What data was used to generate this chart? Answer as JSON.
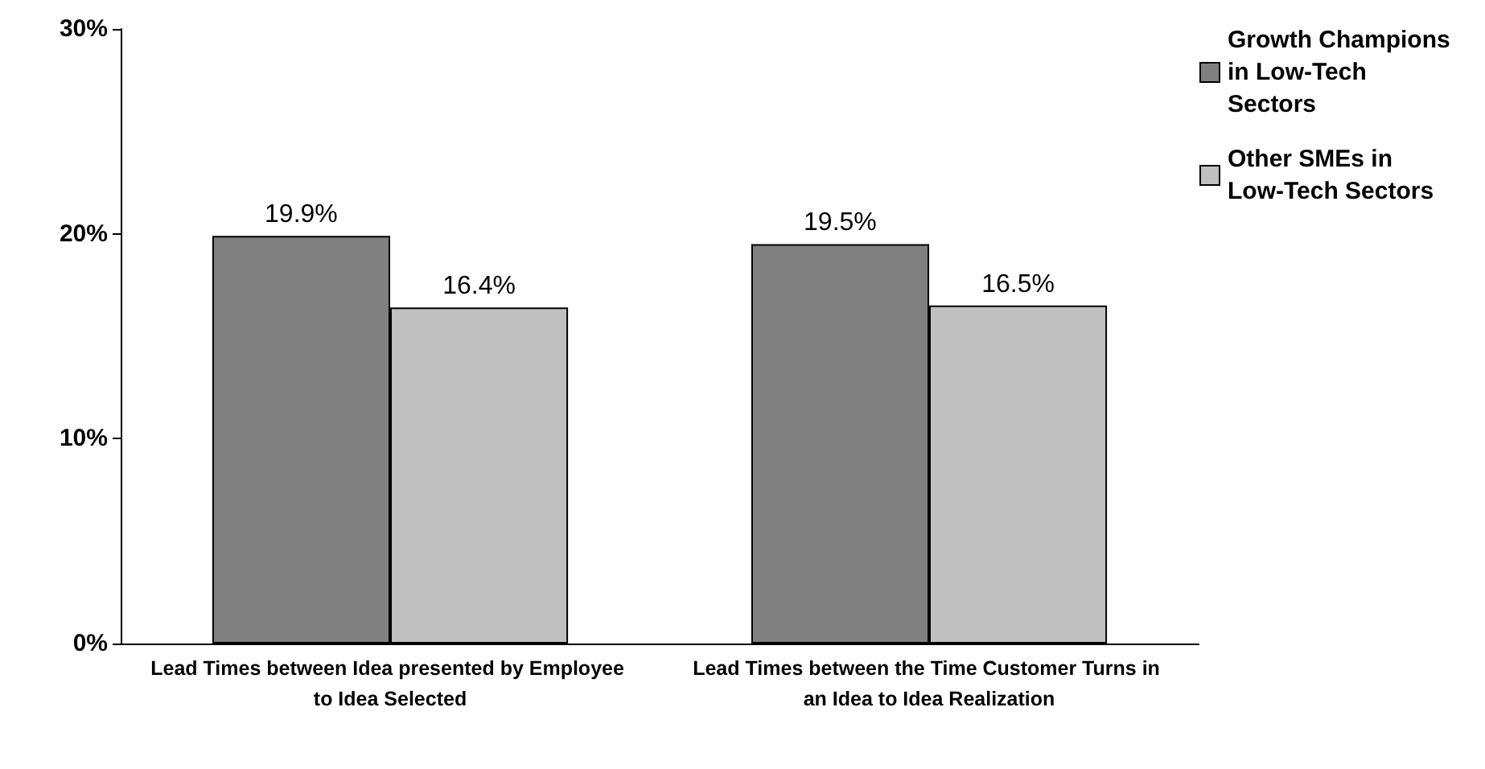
{
  "chart_data": {
    "type": "bar",
    "categories": [
      "Lead Times between Idea presented by Employee to Idea Selected",
      "Lead Times between the Time Customer Turns in an Idea to Idea Realization"
    ],
    "series": [
      {
        "name": "Growth Champions in Low-Tech Sectors",
        "color": "#808080",
        "values": [
          19.9,
          19.5
        ],
        "value_labels": [
          "19.9%",
          "19.5%"
        ]
      },
      {
        "name": "Other SMEs in Low-Tech Sectors",
        "color": "#c0c0c0",
        "values": [
          16.4,
          16.5
        ],
        "value_labels": [
          "16.4%",
          "16.5%"
        ]
      }
    ],
    "ylim": [
      0,
      30
    ],
    "yticks": [
      {
        "value": 0,
        "label": "0%"
      },
      {
        "value": 10,
        "label": "10%"
      },
      {
        "value": 20,
        "label": "20%"
      },
      {
        "value": 30,
        "label": "30%"
      }
    ],
    "grid": false,
    "legend": "top right"
  }
}
